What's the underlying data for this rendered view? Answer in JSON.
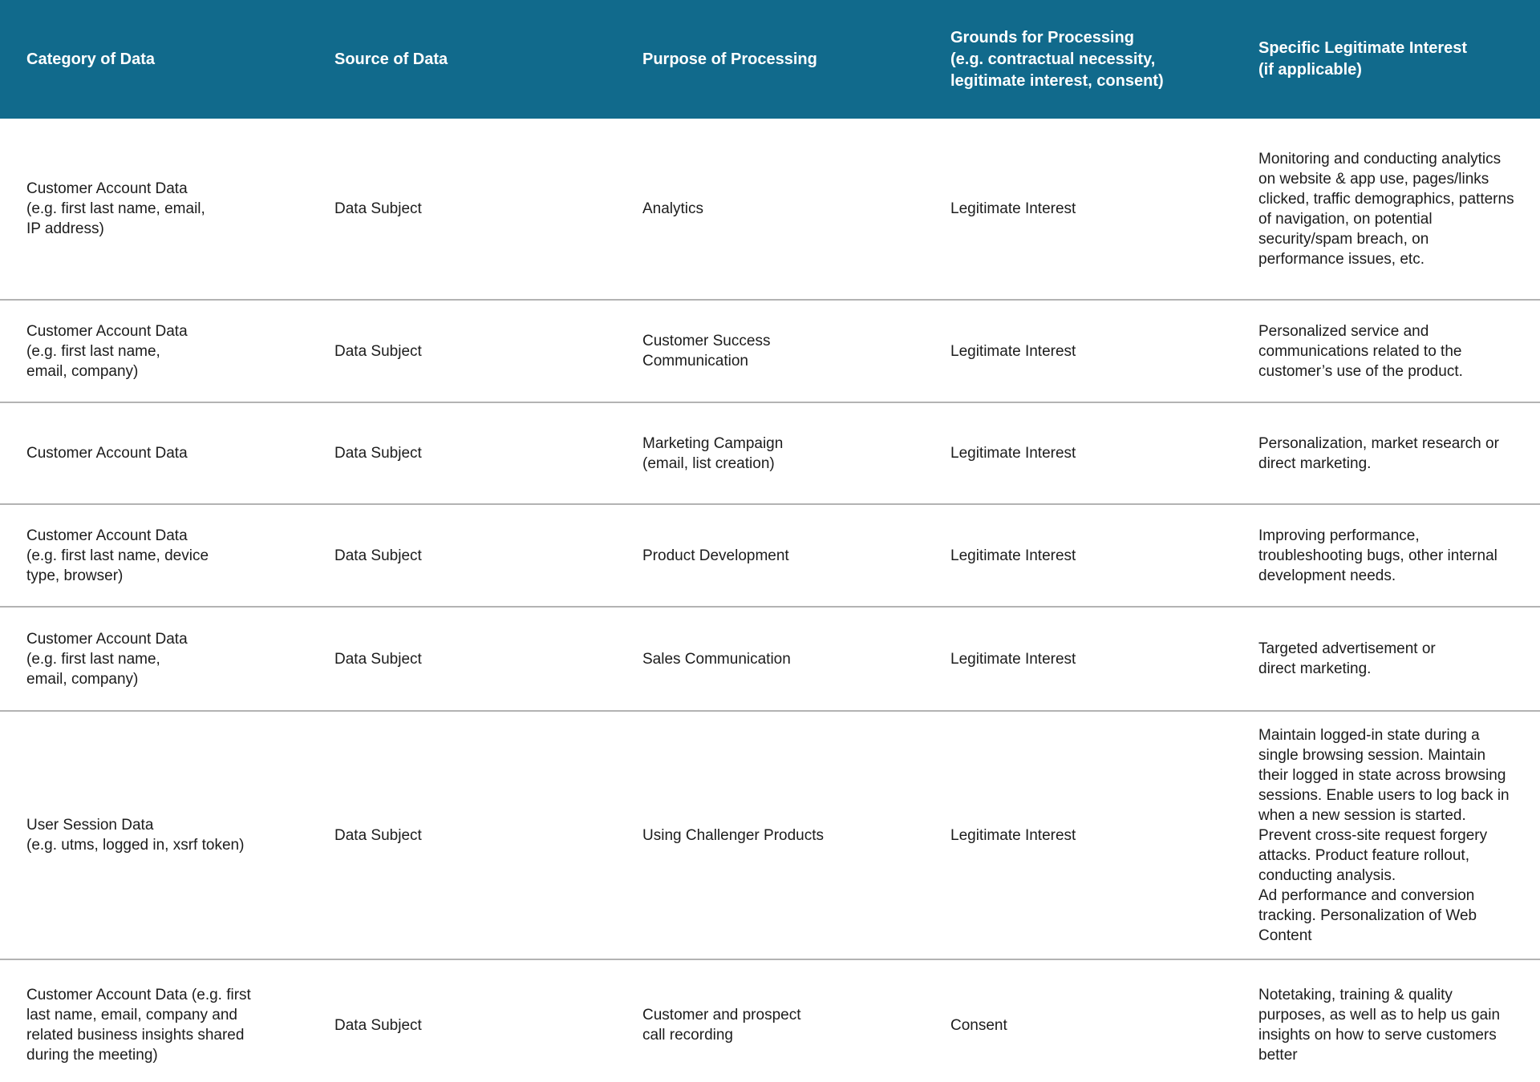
{
  "colors": {
    "header_bg": "#116A8C",
    "header_text": "#FFFFFF",
    "body_text": "#1C1C1C",
    "divider": "#B3B3B3"
  },
  "table": {
    "headers": [
      "Category of Data",
      "Source of Data",
      "Purpose of Processing",
      "Grounds for Processing\n(e.g. contractual necessity,\nlegitimate interest, consent)",
      "Specific Legitimate Interest\n(if applicable)"
    ],
    "rows": [
      {
        "category": "Customer Account Data\n(e.g. first last name, email,\nIP address)",
        "source": "Data Subject",
        "purpose": "Analytics",
        "grounds": "Legitimate Interest",
        "interest": "Monitoring and conducting analytics on website & app use, pages/links clicked, traffic demographics, patterns of navigation, on potential security/spam breach, on performance issues, etc."
      },
      {
        "category": "Customer Account Data\n(e.g. first last name,\nemail, company)",
        "source": "Data Subject",
        "purpose": "Customer Success\nCommunication",
        "grounds": "Legitimate Interest",
        "interest": "Personalized service and communications related to the customer’s use of the product."
      },
      {
        "category": "Customer Account Data",
        "source": "Data Subject",
        "purpose": "Marketing Campaign\n(email, list creation)",
        "grounds": "Legitimate Interest",
        "interest": "Personalization, market research or direct marketing."
      },
      {
        "category": "Customer Account Data\n(e.g. first last name, device\ntype, browser)",
        "source": "Data Subject",
        "purpose": "Product Development",
        "grounds": "Legitimate Interest",
        "interest": "Improving performance, troubleshooting bugs, other internal development needs."
      },
      {
        "category": "Customer Account Data\n(e.g. first last name,\nemail, company)",
        "source": "Data Subject",
        "purpose": "Sales Communication",
        "grounds": "Legitimate Interest",
        "interest": "Targeted advertisement or\ndirect marketing."
      },
      {
        "category": "User Session Data\n(e.g. utms, logged in, xsrf token)",
        "source": "Data Subject",
        "purpose": "Using Challenger Products",
        "grounds": "Legitimate Interest",
        "interest": "Maintain logged-in state during a single browsing session. Maintain their logged in state across browsing sessions. Enable users to log back in when a new session is started. Prevent cross-site request forgery attacks. Product feature rollout, conducting analysis.\nAd performance and conversion tracking. Personalization of Web Content"
      },
      {
        "category": "Customer Account Data (e.g. first last name, email, company and related business insights shared during the meeting)",
        "source": "Data Subject",
        "purpose": "Customer and prospect\ncall recording",
        "grounds": "Consent",
        "interest": "Notetaking, training & quality purposes, as well as to help us gain insights on how to serve customers better"
      }
    ]
  }
}
